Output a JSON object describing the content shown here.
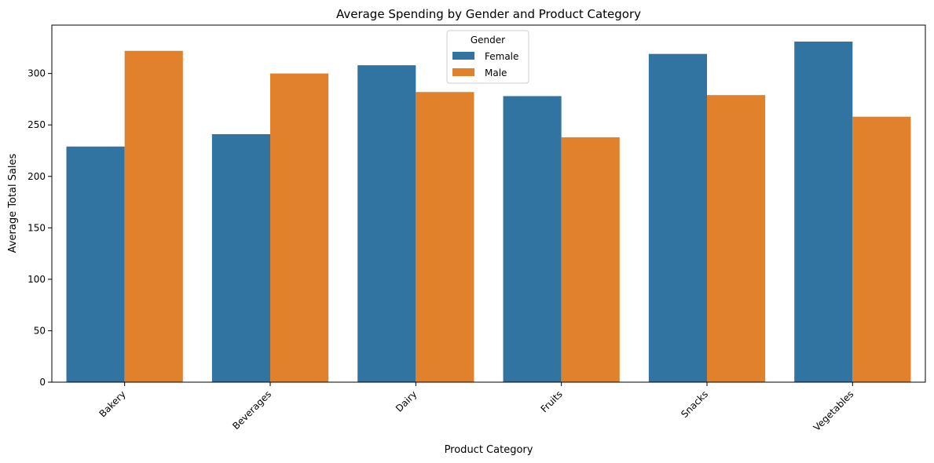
{
  "chart_data": {
    "type": "bar",
    "title": "Average Spending by Gender and Product Category",
    "xlabel": "Product Category",
    "ylabel": "Average Total Sales",
    "categories": [
      "Bakery",
      "Beverages",
      "Dairy",
      "Fruits",
      "Snacks",
      "Vegetables"
    ],
    "series": [
      {
        "name": "Female",
        "color": "#3274a1",
        "values": [
          229,
          241,
          308,
          278,
          319,
          331
        ]
      },
      {
        "name": "Male",
        "color": "#e1812c",
        "values": [
          322,
          300,
          282,
          238,
          279,
          258
        ]
      }
    ],
    "ylim": [
      0,
      347
    ],
    "yticks": [
      0,
      50,
      100,
      150,
      200,
      250,
      300
    ],
    "legend": {
      "title": "Gender",
      "placement": "top-center"
    },
    "grid": false
  }
}
